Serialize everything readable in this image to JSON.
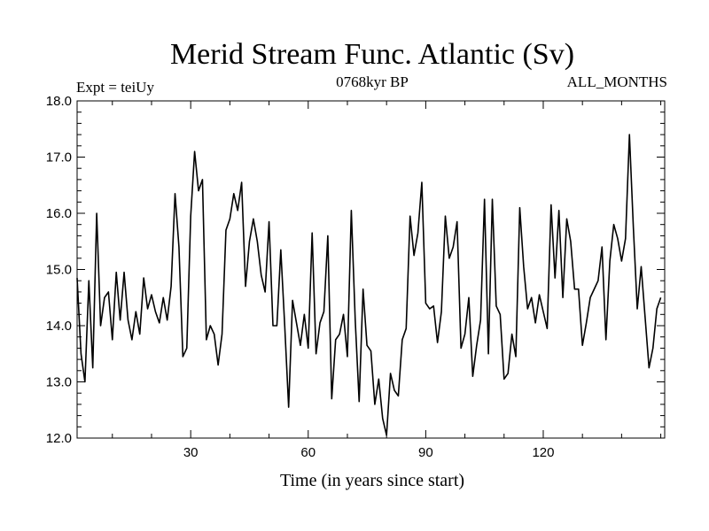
{
  "chart_data": {
    "type": "line",
    "title": "Merid Stream Func. Atlantic (Sv)",
    "subtitle_left": "Expt = teiUy",
    "subtitle_center": "0768kyr BP",
    "subtitle_right": "ALL_MONTHS",
    "xlabel": "Time (in years since start)",
    "ylabel": "",
    "xlim": [
      1,
      151
    ],
    "ylim": [
      12.0,
      18.0
    ],
    "x_ticks": [
      30,
      60,
      90,
      120
    ],
    "x_tick_labels": [
      "30",
      "60",
      "90",
      "120"
    ],
    "y_ticks": [
      12.0,
      13.0,
      14.0,
      15.0,
      16.0,
      17.0,
      18.0
    ],
    "y_tick_labels": [
      "12.0",
      "13.0",
      "14.0",
      "15.0",
      "16.0",
      "17.0",
      "18.0"
    ],
    "grid": false,
    "line_color": "#000000",
    "x_start": 1,
    "x_step": 1,
    "values": [
      14.85,
      13.5,
      13.0,
      14.8,
      13.25,
      16.0,
      14.0,
      14.5,
      14.6,
      13.75,
      14.95,
      14.1,
      14.95,
      14.1,
      13.75,
      14.25,
      13.85,
      14.85,
      14.3,
      14.55,
      14.25,
      14.05,
      14.5,
      14.1,
      14.7,
      16.35,
      15.4,
      13.45,
      13.6,
      15.95,
      17.1,
      16.4,
      16.6,
      13.75,
      14.0,
      13.85,
      13.3,
      13.85,
      15.7,
      15.9,
      16.35,
      16.05,
      16.55,
      14.7,
      15.5,
      15.9,
      15.5,
      14.9,
      14.6,
      15.85,
      14.0,
      14.0,
      15.35,
      14.0,
      12.55,
      14.45,
      14.05,
      13.65,
      14.2,
      13.6,
      15.65,
      13.5,
      14.05,
      14.25,
      15.6,
      12.7,
      13.75,
      13.85,
      14.2,
      13.45,
      16.05,
      14.1,
      12.65,
      14.65,
      13.65,
      13.55,
      12.6,
      13.05,
      12.35,
      12.05,
      13.15,
      12.85,
      12.75,
      13.75,
      13.95,
      15.95,
      15.25,
      15.65,
      16.55,
      14.4,
      14.3,
      14.35,
      13.7,
      14.25,
      15.95,
      15.2,
      15.4,
      15.85,
      13.6,
      13.85,
      14.5,
      13.1,
      13.65,
      14.1,
      16.25,
      13.5,
      16.25,
      14.35,
      14.2,
      13.05,
      13.15,
      13.85,
      13.45,
      16.1,
      15.05,
      14.3,
      14.5,
      14.05,
      14.55,
      14.25,
      13.95,
      16.15,
      14.85,
      16.05,
      14.5,
      15.9,
      15.5,
      14.65,
      14.65,
      13.65,
      14.05,
      14.5,
      14.65,
      14.8,
      15.4,
      13.75,
      15.15,
      15.8,
      15.55,
      15.15,
      15.55,
      17.4,
      15.75,
      14.3,
      15.05,
      14.15,
      13.25,
      13.6,
      14.3,
      14.5
    ]
  }
}
